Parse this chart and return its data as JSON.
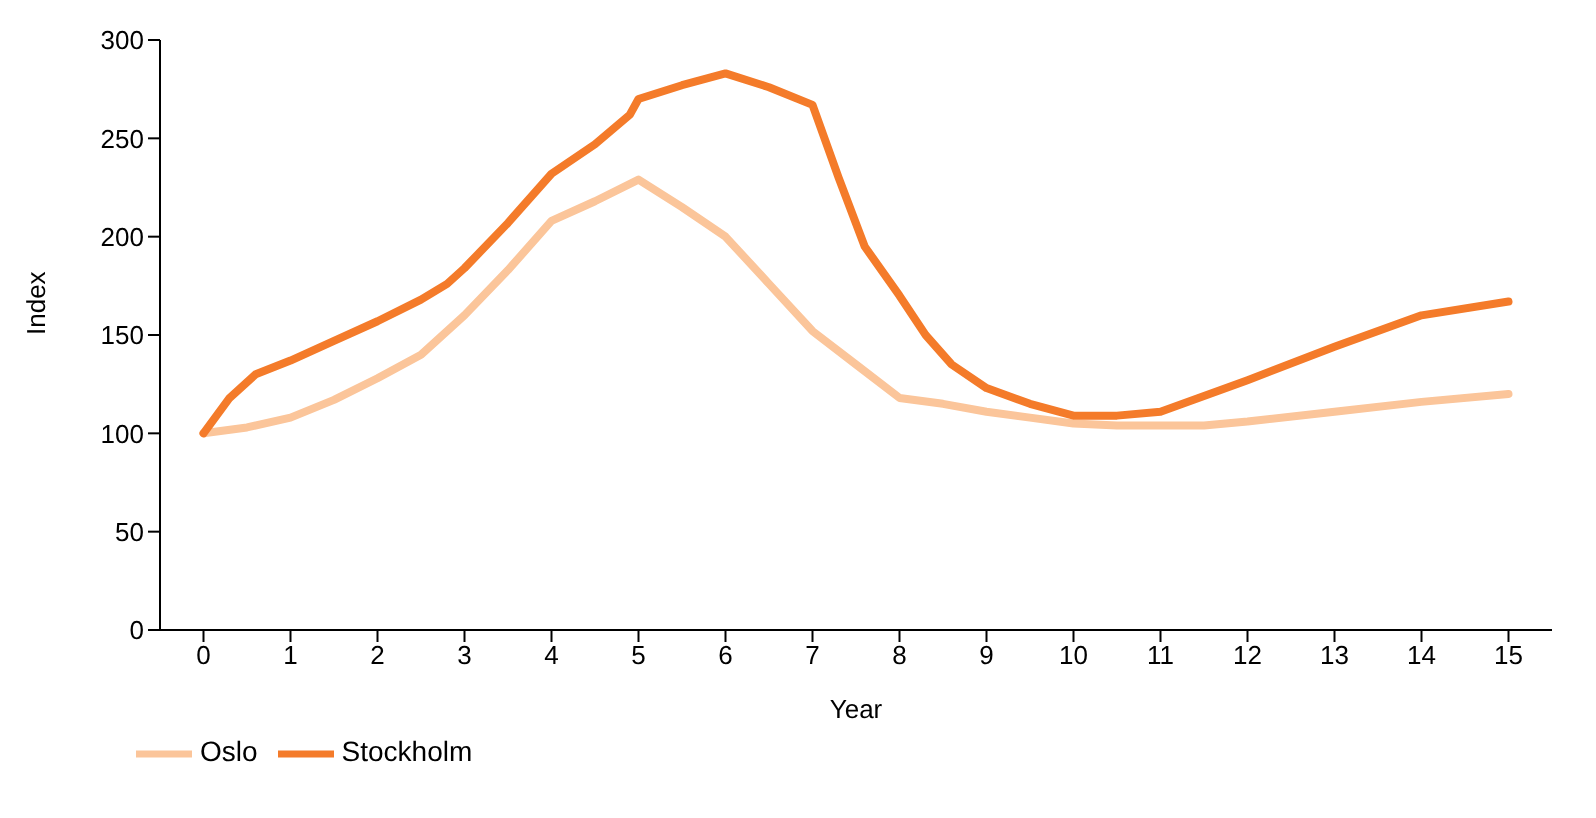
{
  "chart_data": {
    "type": "line",
    "xlabel": "Year",
    "ylabel": "Index",
    "xlim": [
      -0.5,
      15.5
    ],
    "xticks": [
      0,
      1,
      2,
      3,
      4,
      5,
      6,
      7,
      8,
      9,
      10,
      11,
      12,
      13,
      14,
      15
    ],
    "ylim": [
      0,
      300
    ],
    "yticks": [
      0,
      50,
      100,
      150,
      200,
      250,
      300
    ],
    "grid": false,
    "legend": "bottom",
    "marker": "none",
    "line_style": "solid",
    "series": [
      {
        "name": "Oslo",
        "color": "#fbc59a",
        "x": [
          0,
          0.5,
          1,
          1.5,
          2,
          2.5,
          3,
          3.5,
          4,
          4.5,
          5,
          5.5,
          6,
          6.5,
          7,
          7.5,
          8,
          8.5,
          9,
          9.5,
          10,
          10.5,
          11,
          11.5,
          12,
          13,
          14,
          15
        ],
        "values": [
          100,
          103,
          108,
          117,
          128,
          140,
          160,
          183,
          208,
          218,
          229,
          215,
          200,
          176,
          152,
          135,
          118,
          115,
          111,
          108,
          105,
          104,
          104,
          104,
          106,
          111,
          116,
          120
        ]
      },
      {
        "name": "Stockholm",
        "color": "#f47b2a",
        "x": [
          0,
          0.3,
          0.6,
          1,
          1.5,
          2,
          2.5,
          2.8,
          3,
          3.5,
          4,
          4.5,
          4.9,
          5,
          5.5,
          6,
          6.5,
          7,
          7.3,
          7.6,
          8,
          8.3,
          8.6,
          9,
          9.5,
          10,
          10.5,
          11,
          12,
          13,
          14,
          15
        ],
        "values": [
          100,
          118,
          130,
          137,
          147,
          157,
          168,
          176,
          184,
          207,
          232,
          247,
          262,
          270,
          277,
          283,
          276,
          267,
          230,
          195,
          170,
          150,
          135,
          123,
          115,
          109,
          109,
          111,
          127,
          144,
          160,
          167
        ]
      }
    ]
  }
}
